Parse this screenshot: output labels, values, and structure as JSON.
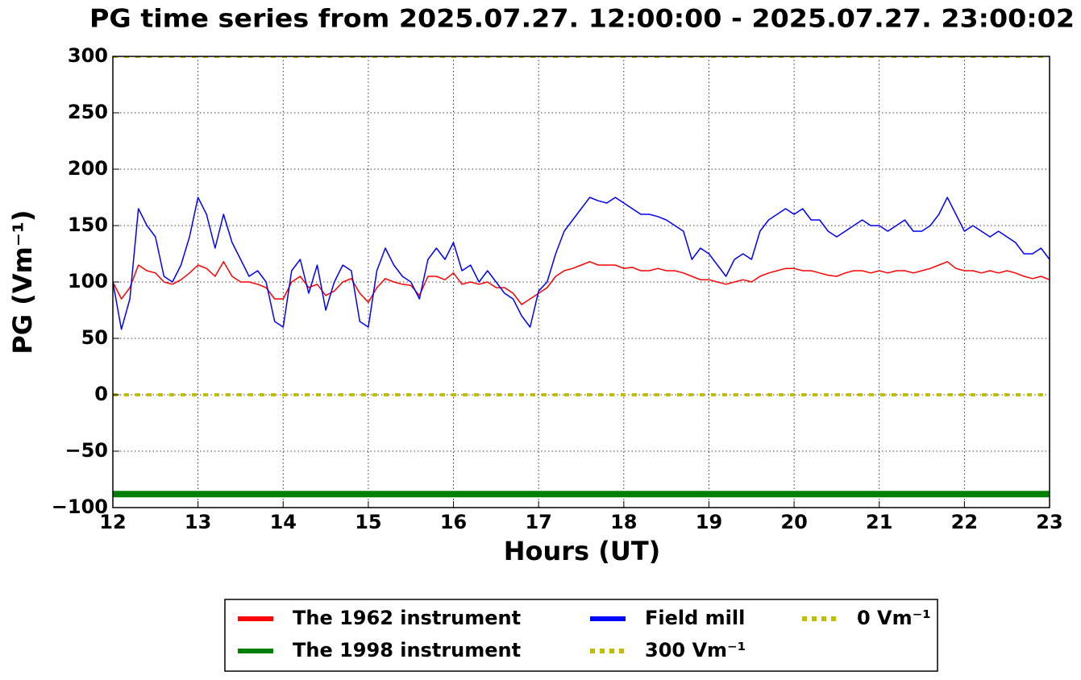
{
  "chart_data": {
    "type": "line",
    "title": "PG time series from 2025.07.27. 12:00:00 - 2025.07.27. 23:00:02",
    "x_label": "Hours (UT)",
    "y_label": "PG (Vm⁻¹)",
    "xlim": [
      12,
      23
    ],
    "ylim": [
      -100,
      300
    ],
    "xticks": [
      12,
      13,
      14,
      15,
      16,
      17,
      18,
      19,
      20,
      21,
      22,
      23
    ],
    "yticks": [
      {
        "value": -100,
        "label": "−100"
      },
      {
        "value": -50,
        "label": "−50"
      },
      0,
      50,
      100,
      150,
      200,
      250,
      300
    ],
    "grid": true,
    "legend": "lower center",
    "x": [
      12.0,
      12.1,
      12.2,
      12.3,
      12.4,
      12.5,
      12.6,
      12.7,
      12.8,
      12.9,
      13.0,
      13.1,
      13.2,
      13.3,
      13.4,
      13.5,
      13.6,
      13.7,
      13.8,
      13.9,
      14.0,
      14.1,
      14.2,
      14.3,
      14.4,
      14.5,
      14.6,
      14.7,
      14.8,
      14.9,
      15.0,
      15.1,
      15.2,
      15.3,
      15.4,
      15.5,
      15.6,
      15.7,
      15.8,
      15.9,
      16.0,
      16.1,
      16.2,
      16.3,
      16.4,
      16.5,
      16.6,
      16.7,
      16.8,
      16.9,
      17.0,
      17.1,
      17.2,
      17.3,
      17.4,
      17.5,
      17.6,
      17.7,
      17.8,
      17.9,
      18.0,
      18.1,
      18.2,
      18.3,
      18.4,
      18.5,
      18.6,
      18.7,
      18.8,
      18.9,
      19.0,
      19.1,
      19.2,
      19.3,
      19.4,
      19.5,
      19.6,
      19.7,
      19.8,
      19.9,
      20.0,
      20.1,
      20.2,
      20.3,
      20.4,
      20.5,
      20.6,
      20.7,
      20.8,
      20.9,
      21.0,
      21.1,
      21.2,
      21.3,
      21.4,
      21.5,
      21.6,
      21.7,
      21.8,
      21.9,
      22.0,
      22.1,
      22.2,
      22.3,
      22.4,
      22.5,
      22.6,
      22.7,
      22.8,
      22.9,
      23.0
    ],
    "series": [
      {
        "name": "The 1962 instrument",
        "color": "#ff0000",
        "linestyle": "solid",
        "values": [
          100,
          85,
          95,
          115,
          110,
          108,
          100,
          98,
          102,
          108,
          115,
          112,
          105,
          118,
          105,
          100,
          100,
          98,
          95,
          85,
          85,
          100,
          105,
          95,
          98,
          88,
          92,
          100,
          103,
          90,
          82,
          95,
          103,
          100,
          98,
          97,
          88,
          105,
          105,
          102,
          108,
          98,
          100,
          98,
          100,
          95,
          95,
          90,
          80,
          85,
          90,
          95,
          105,
          110,
          112,
          115,
          118,
          115,
          115,
          115,
          112,
          113,
          110,
          110,
          112,
          110,
          110,
          108,
          105,
          102,
          102,
          100,
          98,
          100,
          102,
          100,
          105,
          108,
          110,
          112,
          112,
          110,
          110,
          108,
          106,
          105,
          108,
          110,
          110,
          108,
          110,
          108,
          110,
          110,
          108,
          110,
          112,
          115,
          118,
          112,
          110,
          110,
          108,
          110,
          108,
          110,
          108,
          105,
          103,
          105,
          102
        ]
      },
      {
        "name": "The 1998 instrument",
        "color": "#008000",
        "linestyle": "solid",
        "x": [
          12,
          23
        ],
        "values": [
          -88,
          -88
        ]
      },
      {
        "name": "Field mill",
        "color": "#0000ff",
        "linestyle": "solid",
        "values": [
          100,
          58,
          85,
          165,
          150,
          140,
          105,
          100,
          115,
          140,
          175,
          160,
          130,
          160,
          135,
          120,
          105,
          110,
          100,
          65,
          60,
          110,
          120,
          90,
          115,
          75,
          100,
          115,
          110,
          65,
          60,
          110,
          130,
          115,
          105,
          100,
          85,
          120,
          130,
          120,
          135,
          110,
          115,
          100,
          110,
          100,
          90,
          85,
          70,
          60,
          92,
          100,
          125,
          145,
          155,
          165,
          175,
          172,
          170,
          175,
          170,
          165,
          160,
          160,
          158,
          155,
          150,
          145,
          120,
          130,
          125,
          115,
          105,
          120,
          125,
          120,
          145,
          155,
          160,
          165,
          160,
          165,
          155,
          155,
          145,
          140,
          145,
          150,
          155,
          150,
          150,
          145,
          150,
          155,
          145,
          145,
          150,
          160,
          175,
          160,
          145,
          150,
          145,
          140,
          145,
          140,
          135,
          125,
          125,
          130,
          120
        ]
      },
      {
        "name": "300 Vm⁻¹",
        "color": "#bfbf00",
        "linestyle": "dotted",
        "x": [
          12,
          23
        ],
        "values": [
          300,
          300
        ]
      },
      {
        "name": "0 Vm⁻¹",
        "color": "#bfbf00",
        "linestyle": "dotted",
        "x": [
          12,
          23
        ],
        "values": [
          0,
          0
        ]
      }
    ]
  }
}
